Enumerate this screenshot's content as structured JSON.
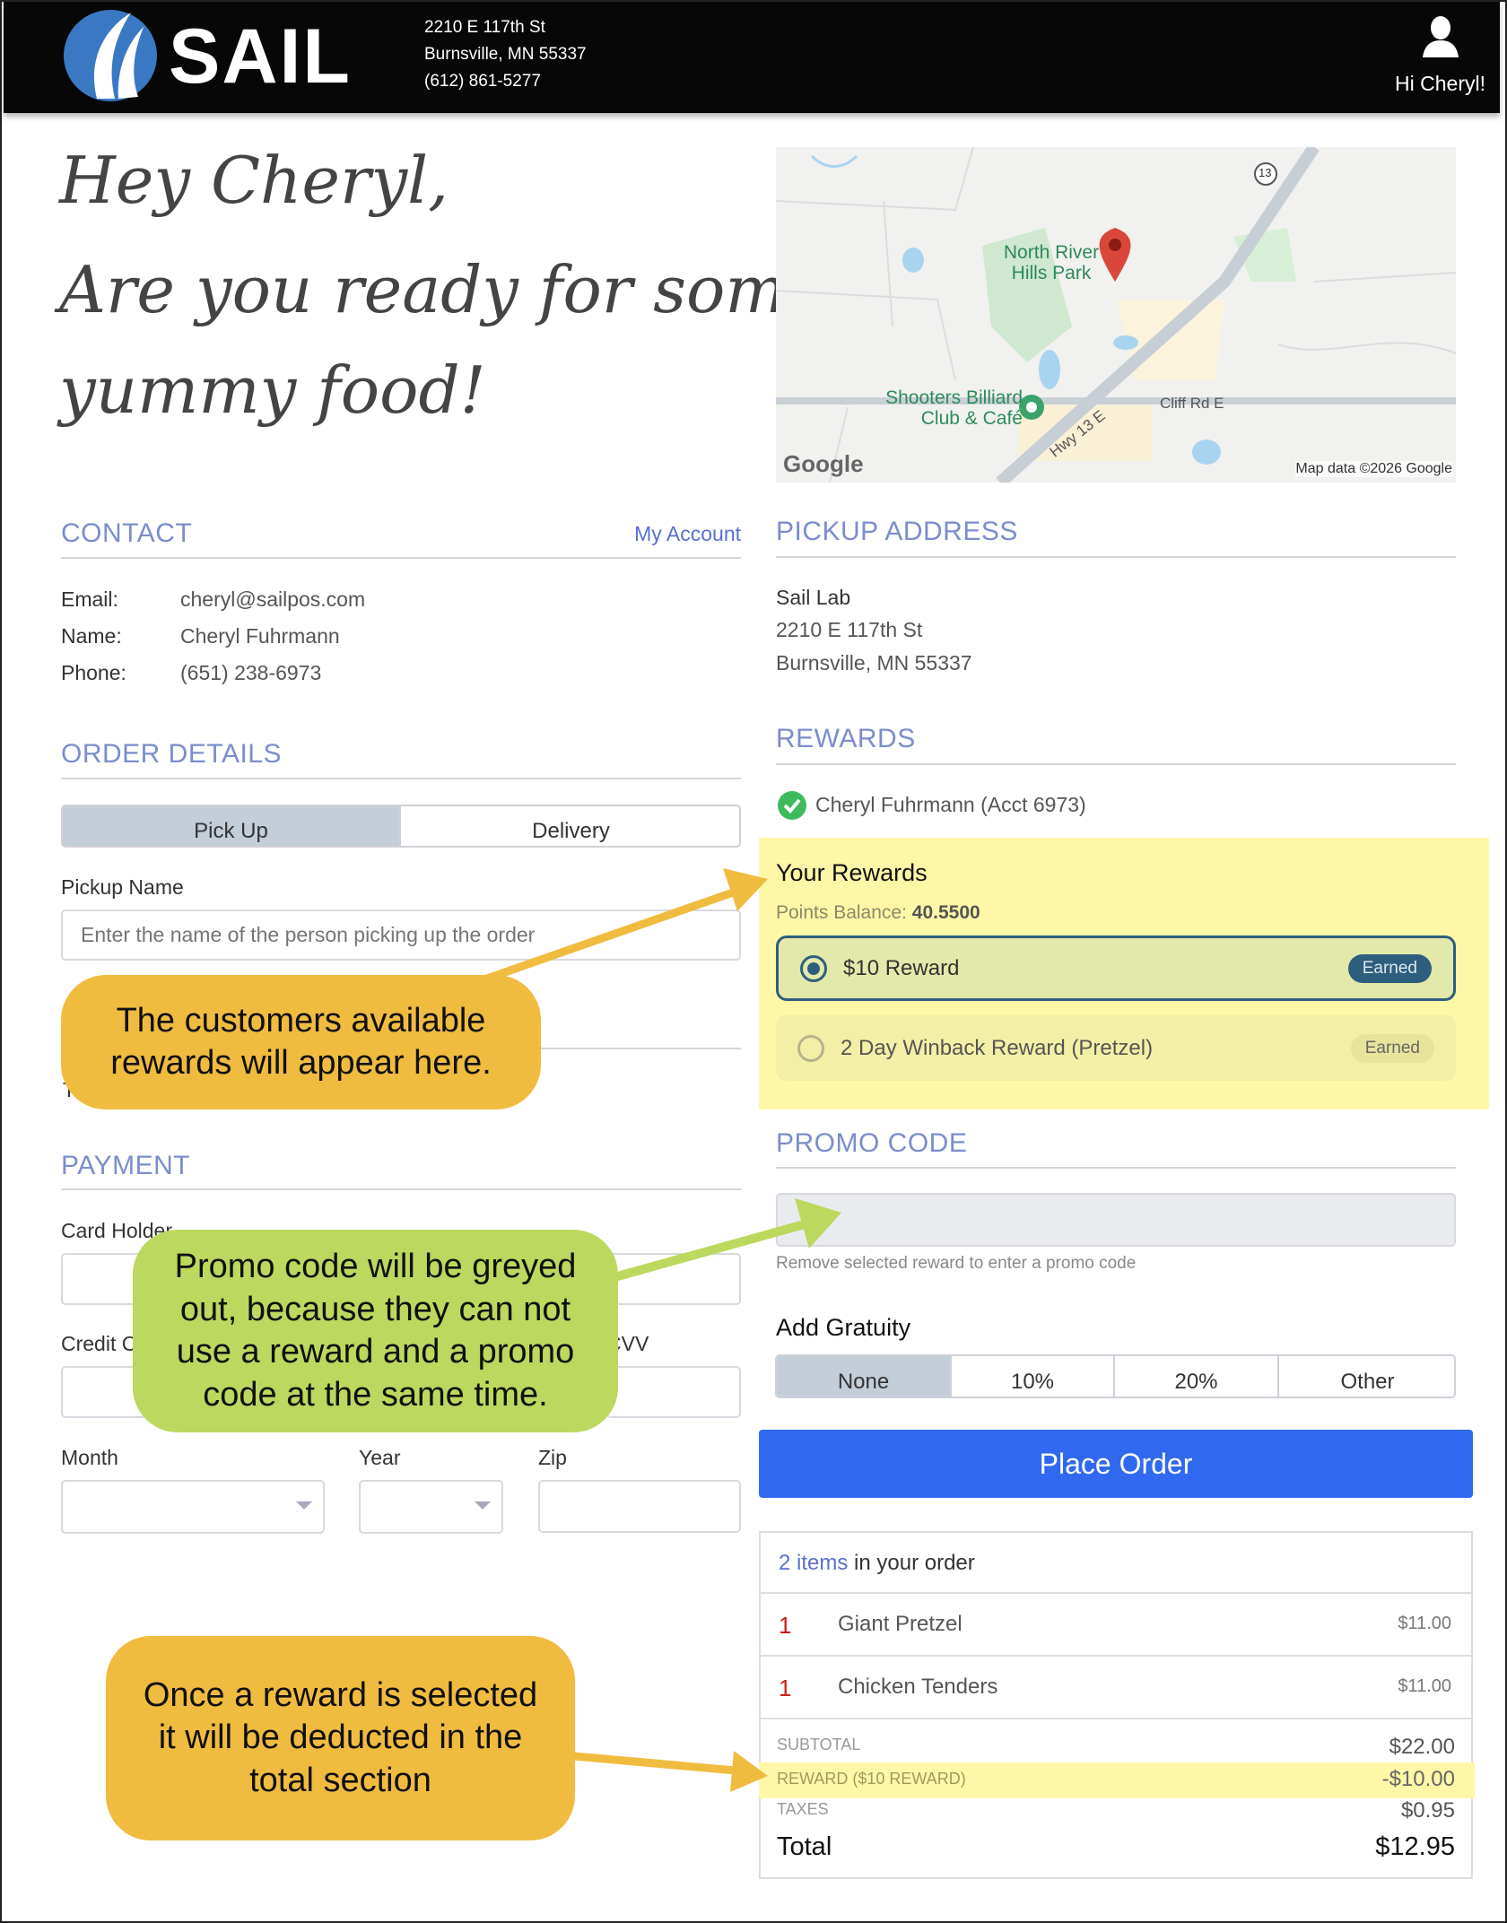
{
  "header": {
    "brand": "SAIL",
    "address_line1": "2210 E 117th St",
    "address_line2": "Burnsville, MN 55337",
    "phone": "(612) 861-5277",
    "greeting": "Hi Cheryl!",
    "user_icon": "user-icon"
  },
  "greeting": {
    "line1": "Hey Cheryl,",
    "line2": "Are you ready for some",
    "line3": "yummy food!"
  },
  "map": {
    "park": "North River Hills Park",
    "place": "Shooters Billiard Club & Café",
    "road": "Cliff Rd E",
    "hwy": "Hwy 13 E",
    "route": "13",
    "logo": "Google",
    "attribution": "Map data ©2026 Google"
  },
  "contact": {
    "title": "CONTACT",
    "my_account": "My Account",
    "rows": [
      {
        "label": "Email:",
        "value": "cheryl@sailpos.com"
      },
      {
        "label": "Name:",
        "value": "Cheryl Fuhrmann"
      },
      {
        "label": "Phone:",
        "value": "(651) 238-6973"
      }
    ]
  },
  "order_details": {
    "title": "ORDER DETAILS",
    "tabs": [
      "Pick Up",
      "Delivery"
    ],
    "selected": "Pick Up",
    "pickup_label": "Pickup Name",
    "pickup_placeholder": "Enter the name of the person picking up the order",
    "partial": "T"
  },
  "payment": {
    "title": "PAYMENT",
    "card_holder": "Card Holder",
    "credit_card": "Credit Card",
    "cvv": "CVV",
    "month": "Month",
    "year": "Year",
    "zip": "Zip"
  },
  "pickup": {
    "title": "PICKUP ADDRESS",
    "name": "Sail Lab",
    "line1": "2210 E 117th St",
    "line2": "Burnsville, MN 55337"
  },
  "rewards": {
    "title": "REWARDS",
    "account": "Cheryl Fuhrmann (Acct 6973)",
    "your_rewards": "Your Rewards",
    "points_label": "Points Balance:",
    "points": "40.5500",
    "items": [
      {
        "name": "$10 Reward",
        "badge": "Earned",
        "selected": true
      },
      {
        "name": "2 Day Winback Reward (Pretzel)",
        "badge": "Earned",
        "selected": false
      }
    ]
  },
  "promo": {
    "title": "PROMO CODE",
    "hint": "Remove selected reward to enter a promo code",
    "disabled": true
  },
  "gratuity": {
    "title": "Add Gratuity",
    "options": [
      "None",
      "10%",
      "20%",
      "Other"
    ],
    "selected": "None"
  },
  "place_order": "Place Order",
  "order": {
    "count": "2 items",
    "count_suffix": "in your order",
    "items": [
      {
        "qty": "1",
        "name": "Giant Pretzel",
        "price": "$11.00"
      },
      {
        "qty": "1",
        "name": "Chicken Tenders",
        "price": "$11.00"
      }
    ],
    "subtotal_label": "SUBTOTAL",
    "subtotal": "$22.00",
    "reward_label": "REWARD ($10 REWARD)",
    "reward": "-$10.00",
    "taxes_label": "TAXES",
    "taxes": "$0.95",
    "total_label": "Total",
    "total": "$12.95"
  },
  "callouts": {
    "rewards": "The customers available rewards will appear here.",
    "promo": "Promo code will be greyed out, because they can not use a reward and a promo code at the same time.",
    "total": "Once a reward is selected it will be deducted in the total section"
  },
  "colors": {
    "accent": "#7b8dcc",
    "place_order": "#3069ef",
    "highlight": "#fff7a8",
    "callout_orange": "#f0bc40",
    "callout_green": "#bcd85e",
    "reward_selected_border": "#2e5e7e"
  }
}
